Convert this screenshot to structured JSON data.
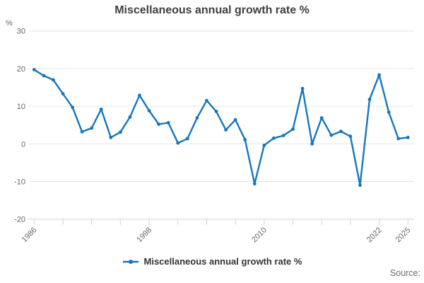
{
  "title": "Miscellaneous annual growth rate %",
  "y_axis": {
    "unit": "%",
    "ticks": [
      30,
      20,
      10,
      0,
      -10,
      -20
    ],
    "min": -20,
    "max": 30
  },
  "x_axis": {
    "tick_years": [
      1986,
      1989,
      1992,
      1995,
      1998,
      2001,
      2004,
      2007,
      2010,
      2013,
      2016,
      2019,
      2022,
      2025
    ],
    "labeled_years": [
      1986,
      1998,
      2010,
      2022,
      2025
    ],
    "min": 1986,
    "max": 2025
  },
  "legend": {
    "label": "Miscellaneous annual growth rate %"
  },
  "footer": {
    "source_label": "Source:"
  },
  "colors": {
    "line": "#1776bc",
    "grid": "#e6e6e6",
    "axis": "#c9d2e0",
    "tick_text": "#666666",
    "title_text": "#3f3f3f",
    "legend_text": "#333333",
    "source_text": "#6b6b6b"
  },
  "chart_data": {
    "type": "line",
    "title": "Miscellaneous annual growth rate %",
    "xlabel": "",
    "ylabel": "%",
    "ylim": [
      -20,
      30
    ],
    "grid": true,
    "legend_position": "bottom",
    "x": [
      1986,
      1987,
      1988,
      1989,
      1990,
      1991,
      1992,
      1993,
      1994,
      1995,
      1996,
      1997,
      1998,
      1999,
      2000,
      2001,
      2002,
      2003,
      2004,
      2005,
      2006,
      2007,
      2008,
      2009,
      2010,
      2011,
      2012,
      2013,
      2014,
      2015,
      2016,
      2017,
      2018,
      2019,
      2020,
      2021,
      2022,
      2023,
      2024,
      2025
    ],
    "series": [
      {
        "name": "Miscellaneous annual growth rate %",
        "values": [
          19.7,
          18.1,
          17.0,
          13.3,
          9.7,
          3.2,
          4.2,
          9.2,
          1.7,
          3.1,
          7.1,
          12.9,
          8.8,
          5.2,
          5.6,
          0.2,
          1.4,
          6.9,
          11.5,
          8.6,
          3.7,
          6.4,
          1.1,
          -10.6,
          -0.4,
          1.5,
          2.2,
          3.9,
          14.7,
          0.0,
          6.9,
          2.3,
          3.3,
          2.0,
          -11.0,
          11.8,
          18.3,
          8.4,
          1.4,
          1.7
        ]
      }
    ]
  }
}
